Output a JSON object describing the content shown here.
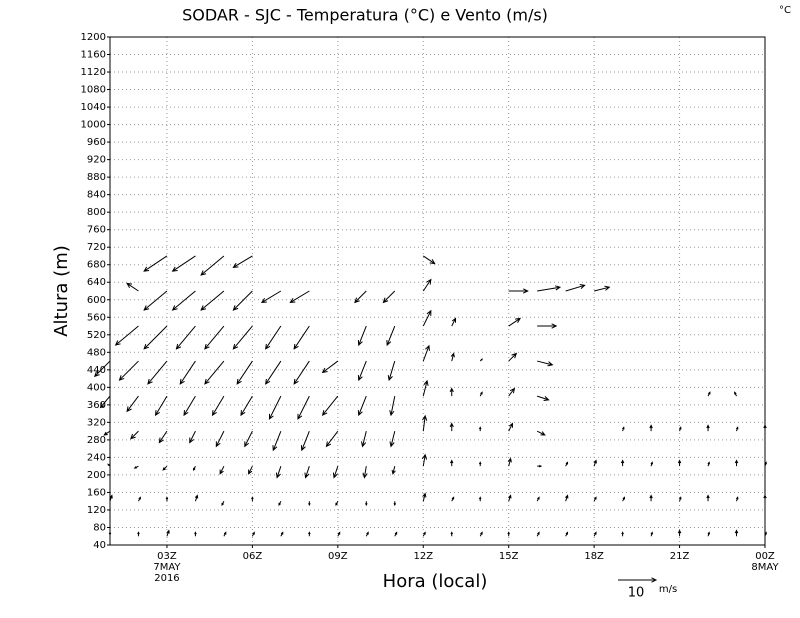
{
  "chart_data": {
    "type": "vector",
    "title": "SODAR - SJC - Temperatura (°C) e Vento (m/s)",
    "corner_label": "°C",
    "x_label": "Hora (local)",
    "y_label": "Altura (m)",
    "xlim": [
      1,
      24
    ],
    "xticks": [
      {
        "value": 3,
        "label": "03Z"
      },
      {
        "value": 6,
        "label": "06Z"
      },
      {
        "value": 9,
        "label": "09Z"
      },
      {
        "value": 12,
        "label": "12Z"
      },
      {
        "value": 15,
        "label": "15Z"
      },
      {
        "value": 18,
        "label": "18Z"
      },
      {
        "value": 21,
        "label": "21Z"
      },
      {
        "value": 24,
        "label": "00Z"
      }
    ],
    "x_date_labels": [
      {
        "value": 3,
        "lines": [
          "7MAY",
          "2016"
        ]
      },
      {
        "value": 24,
        "lines": [
          "8MAY"
        ]
      }
    ],
    "ylim": [
      40,
      1200
    ],
    "yticks": [
      40,
      80,
      120,
      160,
      200,
      240,
      280,
      320,
      360,
      400,
      440,
      480,
      520,
      560,
      600,
      640,
      680,
      720,
      760,
      800,
      840,
      880,
      920,
      960,
      1000,
      1040,
      1080,
      1120,
      1160,
      1200
    ],
    "grid": true,
    "color": "#000000",
    "heights": [
      60,
      140,
      220,
      300,
      380,
      460,
      540,
      620,
      700
    ],
    "columns": [
      {
        "x": 1,
        "u": [
          0,
          0.5,
          -0.5,
          -1.5,
          -2.5,
          -4,
          null,
          null,
          null
        ],
        "v": [
          1,
          1.5,
          0.5,
          -1,
          -3,
          -4,
          null,
          null,
          null
        ]
      },
      {
        "x": 2,
        "u": [
          0,
          0.5,
          -1,
          -2,
          -3,
          -5,
          -6,
          -3,
          null
        ],
        "v": [
          1,
          1,
          -0.5,
          -2,
          -4,
          -5,
          -5,
          2,
          null
        ]
      },
      {
        "x": 3,
        "u": [
          0.5,
          0,
          -1,
          -2,
          -3,
          -5,
          -6,
          -6,
          -6
        ],
        "v": [
          1.5,
          1,
          -1,
          -3,
          -5,
          -6,
          -6,
          -5,
          -4
        ]
      },
      {
        "x": 4,
        "u": [
          0,
          0.5,
          -0.5,
          -1.5,
          -3,
          -4,
          -5,
          -6,
          -6
        ],
        "v": [
          1,
          1.5,
          -1,
          -3,
          -5,
          -6,
          -6,
          -5,
          -4
        ]
      },
      {
        "x": 5,
        "u": [
          0.5,
          -0.5,
          -1,
          -2,
          -3,
          -5,
          -5,
          -6,
          -6
        ],
        "v": [
          1,
          -1,
          -2,
          -4,
          -5,
          -6,
          -6,
          -5,
          -5
        ]
      },
      {
        "x": 6,
        "u": [
          0.5,
          0,
          -1,
          -2,
          -3,
          -4,
          -5,
          -5,
          -5
        ],
        "v": [
          1,
          1,
          -2,
          -4,
          -5,
          -6,
          -6,
          -5,
          -3
        ]
      },
      {
        "x": 7,
        "u": [
          0.5,
          -0.5,
          -1,
          -2,
          -3,
          -4,
          -4,
          -5,
          null
        ],
        "v": [
          1,
          -1,
          -3,
          -5,
          -6,
          -6,
          -6,
          -3,
          null
        ]
      },
      {
        "x": 8,
        "u": [
          0,
          0,
          -1,
          -2,
          -3,
          -4,
          -4,
          -5,
          null
        ],
        "v": [
          1,
          -1,
          -3,
          -5,
          -6,
          -6,
          -6,
          -3,
          null
        ]
      },
      {
        "x": 9,
        "u": [
          0.5,
          -0.5,
          -1,
          -3,
          -4,
          -4,
          null,
          null,
          null
        ],
        "v": [
          1,
          -1,
          -3,
          -4,
          -5,
          -3,
          null,
          null,
          null
        ]
      },
      {
        "x": 10,
        "u": [
          0.5,
          0,
          -0.5,
          -1,
          -2,
          -2,
          -2,
          -3,
          null
        ],
        "v": [
          1,
          -1,
          -3,
          -4,
          -5,
          -5,
          -5,
          -3,
          null
        ]
      },
      {
        "x": 11,
        "u": [
          0.5,
          0,
          -0.5,
          -1,
          -1,
          -1.5,
          -2,
          -3,
          null
        ],
        "v": [
          1,
          -1,
          -2,
          -4,
          -5,
          -5,
          -5,
          -3,
          null
        ]
      },
      {
        "x": 12,
        "u": [
          0.5,
          0.5,
          0.5,
          0.5,
          1,
          1.5,
          2,
          2,
          3
        ],
        "v": [
          1,
          2,
          3,
          4,
          4,
          4,
          4,
          3,
          -2
        ]
      },
      {
        "x": 13,
        "u": [
          0,
          0.5,
          0,
          0,
          0,
          0.5,
          1,
          null,
          null
        ],
        "v": [
          1,
          1,
          1.5,
          2,
          2,
          2,
          2,
          null,
          null
        ]
      },
      {
        "x": 14,
        "u": [
          0.5,
          0,
          0,
          0,
          0.5,
          0.5,
          null,
          null,
          null
        ],
        "v": [
          1,
          1,
          1,
          1,
          1,
          0.5,
          null,
          null,
          null
        ]
      },
      {
        "x": 15,
        "u": [
          0,
          0.5,
          0.5,
          1,
          1.5,
          2,
          3,
          5,
          null
        ],
        "v": [
          1,
          1.5,
          2,
          2,
          2,
          2,
          2,
          0,
          null
        ]
      },
      {
        "x": 16,
        "u": [
          0.5,
          0.5,
          1,
          2,
          3,
          4,
          5,
          6,
          null
        ],
        "v": [
          1,
          1,
          0,
          -1,
          -1,
          -1,
          0,
          1,
          null
        ]
      },
      {
        "x": 17,
        "u": [
          0.5,
          0.5,
          0.5,
          null,
          null,
          null,
          null,
          5,
          null
        ],
        "v": [
          1,
          1.5,
          1,
          null,
          null,
          null,
          null,
          1.5,
          null
        ]
      },
      {
        "x": 18,
        "u": [
          0.5,
          0.5,
          0.5,
          null,
          null,
          null,
          null,
          4,
          null
        ],
        "v": [
          1,
          1,
          1.5,
          null,
          null,
          null,
          null,
          1,
          null
        ]
      },
      {
        "x": 19,
        "u": [
          0,
          0.5,
          0,
          0.3,
          null,
          null,
          null,
          null,
          null
        ],
        "v": [
          1,
          1,
          1.5,
          1,
          null,
          null,
          null,
          null,
          null
        ]
      },
      {
        "x": 20,
        "u": [
          0.3,
          0,
          0.3,
          0,
          null,
          null,
          null,
          null,
          null
        ],
        "v": [
          1,
          1.5,
          1,
          1.5,
          null,
          null,
          null,
          null,
          null
        ]
      },
      {
        "x": 21,
        "u": [
          0,
          0.3,
          0,
          0.3,
          null,
          null,
          null,
          null,
          null
        ],
        "v": [
          1.5,
          1,
          1.5,
          1,
          null,
          null,
          null,
          null,
          null
        ]
      },
      {
        "x": 22,
        "u": [
          0.3,
          0,
          0.3,
          0,
          0.5,
          null,
          null,
          null,
          null
        ],
        "v": [
          1,
          1.5,
          1,
          1.5,
          1,
          null,
          null,
          null,
          null
        ]
      },
      {
        "x": 23,
        "u": [
          0,
          0.3,
          0,
          0.3,
          -0.5,
          null,
          null,
          null,
          null
        ],
        "v": [
          1.5,
          1,
          1.5,
          1,
          1,
          null,
          null,
          null,
          null
        ]
      },
      {
        "x": 24,
        "u": [
          0.3,
          0,
          0.3,
          0,
          null,
          null,
          null,
          null,
          null
        ],
        "v": [
          1,
          1.5,
          1,
          1.5,
          null,
          null,
          null,
          null,
          null
        ]
      }
    ],
    "key": {
      "value": 10,
      "unit": "m/s"
    }
  }
}
